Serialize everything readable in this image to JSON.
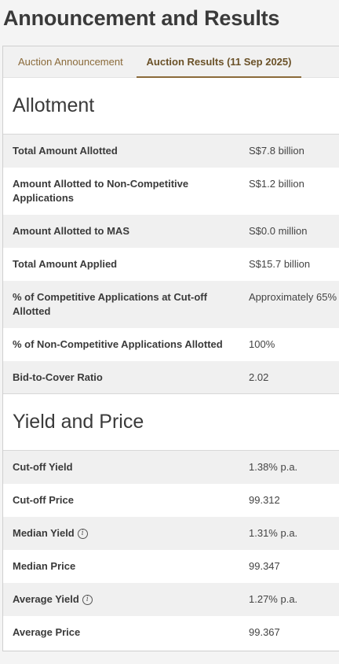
{
  "page": {
    "title": "Announcement and Results"
  },
  "tabs": [
    {
      "label": "Auction Announcement"
    },
    {
      "label": "Auction Results (11 Sep 2025)"
    }
  ],
  "allotment": {
    "heading": "Allotment",
    "rows": [
      {
        "label": "Total Amount Allotted",
        "value": "S$7.8 billion"
      },
      {
        "label": "Amount Allotted to Non-Competitive Applications",
        "value": "S$1.2 billion"
      },
      {
        "label": "Amount Allotted to MAS",
        "value": "S$0.0 million"
      },
      {
        "label": "Total Amount Applied",
        "value": "S$15.7 billion"
      },
      {
        "label": "% of Competitive Applications at Cut-off Allotted",
        "value": "Approximately 65%"
      },
      {
        "label": "% of Non-Competitive Applications Allotted",
        "value": "100%"
      },
      {
        "label": "Bid-to-Cover Ratio",
        "value": "2.02"
      }
    ]
  },
  "yield_price": {
    "heading": "Yield and Price",
    "rows": [
      {
        "label": "Cut-off Yield",
        "value": "1.38% p.a."
      },
      {
        "label": "Cut-off Price",
        "value": "99.312"
      },
      {
        "label": "Median Yield",
        "value": "1.31% p.a."
      },
      {
        "label": "Median Price",
        "value": "99.347"
      },
      {
        "label": "Average Yield",
        "value": "1.27% p.a."
      },
      {
        "label": "Average Price",
        "value": "99.367"
      }
    ]
  },
  "icons": {
    "info": "info-icon",
    "info_glyph": "i"
  }
}
